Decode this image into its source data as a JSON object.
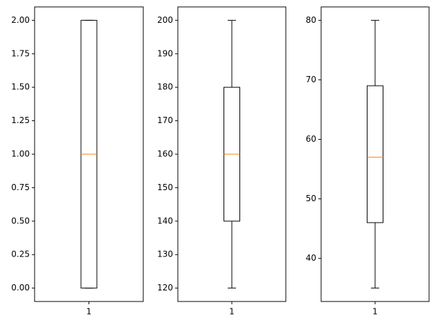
{
  "chart_data": [
    {
      "type": "box",
      "categories": [
        "1"
      ],
      "boxes": [
        {
          "whislo": 0,
          "q1": 0,
          "median": 1,
          "q3": 2,
          "whishi": 2
        }
      ],
      "color": "#000000",
      "median_color": "#ff7f0e",
      "ylim": [
        -0.1,
        2.1
      ],
      "yticks": [
        {
          "value": 0,
          "label": "0.00"
        },
        {
          "value": 0.25,
          "label": "0.25"
        },
        {
          "value": 0.5,
          "label": "0.50"
        },
        {
          "value": 0.75,
          "label": "0.75"
        },
        {
          "value": 1,
          "label": "1.00"
        },
        {
          "value": 1.25,
          "label": "1.25"
        },
        {
          "value": 1.5,
          "label": "1.50"
        },
        {
          "value": 1.75,
          "label": "1.75"
        },
        {
          "value": 2,
          "label": "2.00"
        }
      ]
    },
    {
      "type": "box",
      "categories": [
        "1"
      ],
      "boxes": [
        {
          "whislo": 120,
          "q1": 140,
          "median": 160,
          "q3": 180,
          "whishi": 200
        }
      ],
      "color": "#000000",
      "median_color": "#ff7f0e",
      "ylim": [
        116,
        204
      ],
      "yticks": [
        120,
        130,
        140,
        150,
        160,
        170,
        180,
        190,
        200
      ]
    },
    {
      "type": "box",
      "categories": [
        "1"
      ],
      "boxes": [
        {
          "whislo": 35,
          "q1": 46,
          "median": 57,
          "q3": 69,
          "whishi": 80
        }
      ],
      "color": "#000000",
      "median_color": "#ff7f0e",
      "ylim": [
        32.75,
        82.25
      ],
      "yticks": [
        40,
        50,
        60,
        70,
        80
      ]
    }
  ]
}
